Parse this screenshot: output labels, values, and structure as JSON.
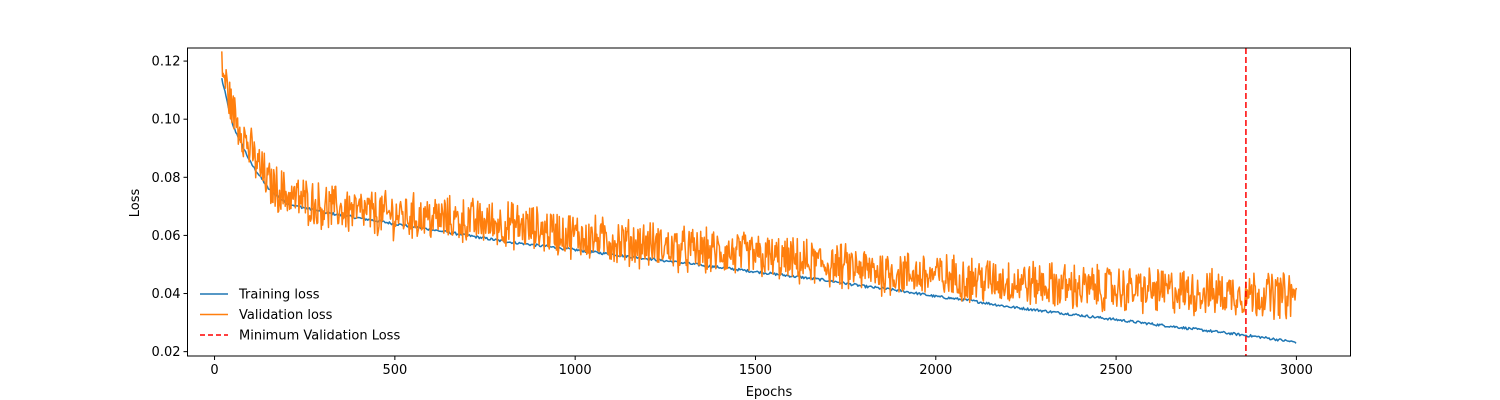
{
  "chart_data": {
    "type": "line",
    "title": "",
    "xlabel": "Epochs",
    "ylabel": "Loss",
    "xlim": [
      -75,
      3150
    ],
    "ylim": [
      0.0185,
      0.1245
    ],
    "xticks": [
      0,
      500,
      1000,
      1500,
      2000,
      2500,
      3000
    ],
    "xtick_labels": [
      "0",
      "500",
      "1000",
      "1500",
      "2000",
      "2500",
      "3000"
    ],
    "yticks": [
      0.02,
      0.04,
      0.06,
      0.08,
      0.1,
      0.12
    ],
    "ytick_labels": [
      "0.02",
      "0.04",
      "0.06",
      "0.08",
      "0.10",
      "0.12"
    ],
    "grid": false,
    "legend_position": "lower-left",
    "series": [
      {
        "name": "Training loss",
        "color": "#1f77b4",
        "style": "solid",
        "x": [
          20,
          50,
          100,
          150,
          200,
          300,
          400,
          500,
          600,
          700,
          800,
          900,
          1000,
          1100,
          1200,
          1300,
          1400,
          1500,
          1600,
          1700,
          1800,
          1900,
          2000,
          2100,
          2200,
          2300,
          2400,
          2500,
          2600,
          2700,
          2800,
          2900,
          3000
        ],
        "y": [
          0.114,
          0.098,
          0.085,
          0.076,
          0.071,
          0.068,
          0.066,
          0.064,
          0.062,
          0.06,
          0.058,
          0.0565,
          0.055,
          0.0535,
          0.052,
          0.0505,
          0.049,
          0.0475,
          0.046,
          0.0445,
          0.0425,
          0.041,
          0.039,
          0.0375,
          0.0355,
          0.034,
          0.0325,
          0.031,
          0.0295,
          0.028,
          0.0265,
          0.025,
          0.0232
        ]
      },
      {
        "name": "Validation loss",
        "color": "#ff7f0e",
        "style": "solid",
        "x": [
          20,
          50,
          100,
          150,
          200,
          300,
          400,
          500,
          600,
          700,
          800,
          900,
          1000,
          1100,
          1200,
          1300,
          1400,
          1500,
          1600,
          1700,
          1800,
          1900,
          2000,
          2100,
          2200,
          2300,
          2400,
          2500,
          2600,
          2700,
          2800,
          2900,
          3000
        ],
        "y": [
          0.118,
          0.103,
          0.089,
          0.078,
          0.074,
          0.07,
          0.068,
          0.067,
          0.066,
          0.065,
          0.064,
          0.062,
          0.06,
          0.058,
          0.057,
          0.055,
          0.054,
          0.053,
          0.051,
          0.05,
          0.048,
          0.047,
          0.046,
          0.045,
          0.044,
          0.043,
          0.042,
          0.0415,
          0.041,
          0.0405,
          0.04,
          0.04,
          0.039
        ]
      }
    ],
    "vlines": [
      {
        "name": "Minimum Validation Loss",
        "x": 2860,
        "color": "#ff0000",
        "style": "dashed"
      }
    ]
  }
}
